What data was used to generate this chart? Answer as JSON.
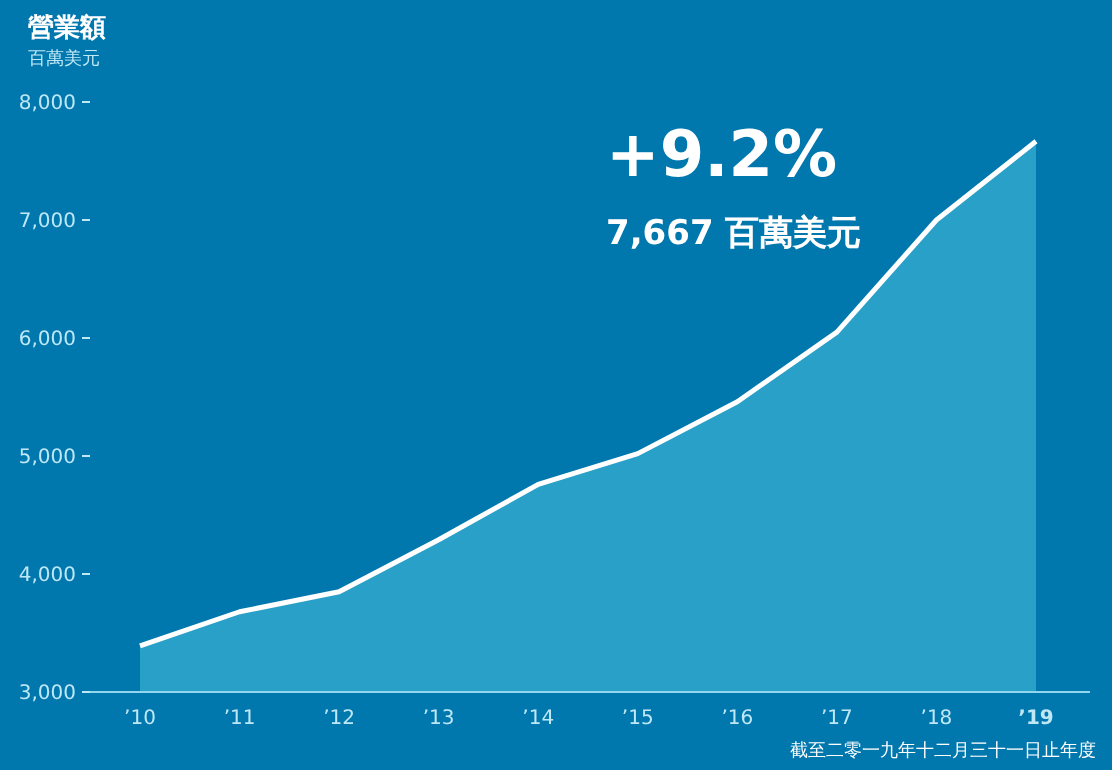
{
  "chart_data": {
    "type": "area",
    "title": "營業額",
    "ylabel": "百萬美元",
    "categories": [
      "’10",
      "’11",
      "’12",
      "’13",
      "’14",
      "’15",
      "’16",
      "’17",
      "’18",
      "’19"
    ],
    "values": [
      3390,
      3680,
      3850,
      4290,
      4760,
      5020,
      5460,
      6050,
      7000,
      7667
    ],
    "color": "#28a0c8",
    "ylim": [
      3000,
      8000
    ],
    "yticks": [
      {
        "value": 3000,
        "label": "3,000"
      },
      {
        "value": 4000,
        "label": "4,000"
      },
      {
        "value": 5000,
        "label": "5,000"
      },
      {
        "value": 6000,
        "label": "6,000"
      },
      {
        "value": 7000,
        "label": "7,000"
      },
      {
        "value": 8000,
        "label": "8,000"
      }
    ],
    "grid": false,
    "annotations": [
      "+9.2%",
      "7,667 百萬美元",
      "截至二零一九年十二月三十一日止年度"
    ]
  }
}
